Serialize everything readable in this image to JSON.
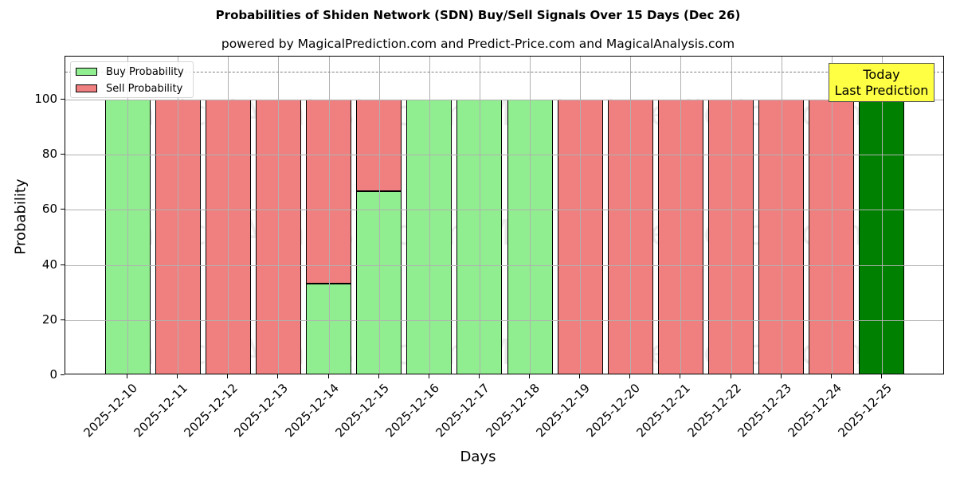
{
  "title": "Probabilities of Shiden Network (SDN) Buy/Sell Signals Over 15 Days (Dec 26)",
  "subtitle": "powered by MagicalPrediction.com and Predict-Price.com and MagicalAnalysis.com",
  "legend": {
    "buy_label": "Buy Probability",
    "sell_label": "Sell Probability"
  },
  "annotation": {
    "line1": "Today",
    "line2": "Last Prediction"
  },
  "watermarks": [
    "MagicalAnalysis.com",
    "MagicalPrediction.com"
  ],
  "colors": {
    "buy": "#90ee90",
    "sell": "#f08080",
    "today": "#008000",
    "annotation_bg": "#ffff44"
  },
  "chart_data": {
    "type": "bar",
    "stacked": true,
    "title": "Probabilities of Shiden Network (SDN) Buy/Sell Signals Over 15 Days (Dec 26)",
    "subtitle": "powered by MagicalPrediction.com and Predict-Price.com and MagicalAnalysis.com",
    "xlabel": "Days",
    "ylabel": "Probability",
    "ylim": [
      0,
      115
    ],
    "yticks": [
      0,
      20,
      40,
      60,
      80,
      100
    ],
    "grid": true,
    "legend_position": "upper left",
    "reference_line": {
      "y": 110,
      "style": "dashed",
      "color": "#808080"
    },
    "categories": [
      "2025-12-10",
      "2025-12-11",
      "2025-12-12",
      "2025-12-13",
      "2025-12-14",
      "2025-12-15",
      "2025-12-16",
      "2025-12-17",
      "2025-12-18",
      "2025-12-19",
      "2025-12-20",
      "2025-12-21",
      "2025-12-22",
      "2025-12-23",
      "2025-12-24",
      "2025-12-25"
    ],
    "series": [
      {
        "name": "Buy Probability",
        "color": "#90ee90",
        "values": [
          100,
          0,
          0,
          0,
          33.33,
          66.67,
          100,
          100,
          100,
          0,
          0,
          0,
          0,
          0,
          0,
          100
        ]
      },
      {
        "name": "Sell Probability",
        "color": "#f08080",
        "values": [
          0,
          100,
          100,
          100,
          66.67,
          33.33,
          0,
          0,
          0,
          100,
          100,
          100,
          100,
          100,
          100,
          0
        ]
      }
    ],
    "highlight": {
      "category": "2025-12-25",
      "color": "#008000",
      "label": "Today\nLast Prediction"
    }
  }
}
